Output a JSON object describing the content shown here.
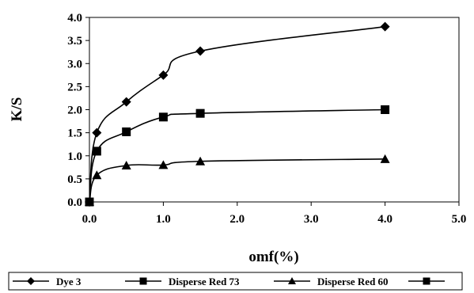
{
  "chart_data": {
    "type": "line",
    "xlabel": "omf(%)",
    "ylabel": "K/S",
    "xlim": [
      0.0,
      5.0
    ],
    "ylim": [
      0.0,
      4.0
    ],
    "x_ticks": [
      "0.0",
      "1.0",
      "2.0",
      "3.0",
      "4.0",
      "5.0"
    ],
    "y_ticks": [
      "0.0",
      "0.5",
      "1.0",
      "1.5",
      "2.0",
      "2.5",
      "3.0",
      "3.5",
      "4.0"
    ],
    "grid": false,
    "legend_position": "bottom",
    "series": [
      {
        "name": "Dye 3",
        "marker": "diamond",
        "x": [
          0,
          0.1,
          0.5,
          1.0,
          1.5,
          4.0
        ],
        "y": [
          0,
          1.5,
          2.17,
          2.75,
          3.27,
          3.8
        ]
      },
      {
        "name": "Disperse Red 73",
        "marker": "square",
        "x": [
          0,
          0.1,
          0.5,
          1.0,
          1.5,
          4.0
        ],
        "y": [
          0,
          1.1,
          1.52,
          1.84,
          1.92,
          2.0
        ]
      },
      {
        "name": "Disperse Red 60",
        "marker": "triangle",
        "x": [
          0,
          0.1,
          0.5,
          1.0,
          1.5,
          4.0
        ],
        "y": [
          0,
          0.58,
          0.79,
          0.8,
          0.88,
          0.93
        ]
      }
    ],
    "legend": [
      {
        "label": "Dye 3",
        "marker": "diamond"
      },
      {
        "label": "Disperse Red 73",
        "marker": "square"
      },
      {
        "label": "Disperse Red 60",
        "marker": "triangle"
      },
      {
        "label": "",
        "marker": "square"
      }
    ]
  }
}
